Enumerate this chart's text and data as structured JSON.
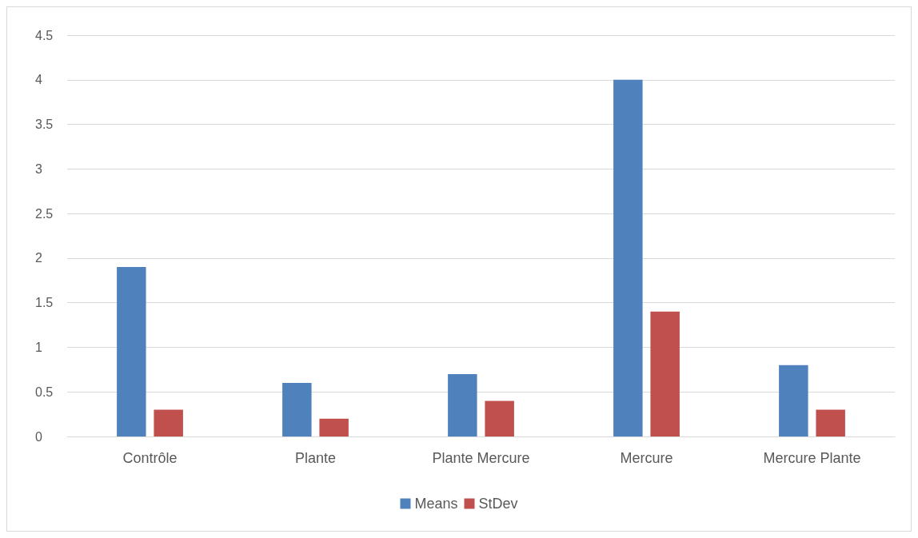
{
  "chart_data": {
    "type": "bar",
    "categories": [
      "Contrôle",
      "Plante",
      "Plante Mercure",
      "Mercure",
      "Mercure Plante"
    ],
    "series": [
      {
        "name": "Means",
        "color": "#4f81bd",
        "values": [
          1.9,
          0.6,
          0.7,
          4.0,
          0.8
        ]
      },
      {
        "name": "StDev",
        "color": "#c0504d",
        "values": [
          0.3,
          0.2,
          0.4,
          1.4,
          0.3
        ]
      }
    ],
    "ylim": [
      0,
      4.5
    ],
    "yticks": [
      0,
      0.5,
      1,
      1.5,
      2,
      2.5,
      3,
      3.5,
      4,
      4.5
    ],
    "grid": "y",
    "legend": "bottom"
  }
}
